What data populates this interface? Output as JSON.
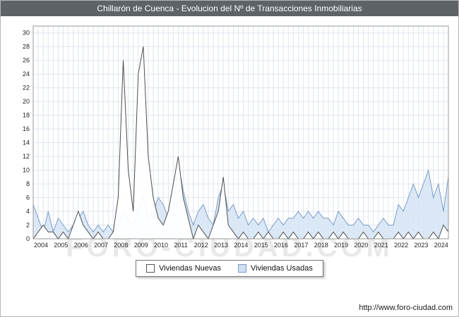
{
  "title": "Chillarón de Cuenca - Evolucion del Nº de Transacciones Inmobiliarias",
  "watermark": "FORO-CIUDAD.COM",
  "footer": {
    "url": "http://www.foro-ciudad.com"
  },
  "colors": {
    "header_bg": "#5e6367",
    "grid": "#dde6f0",
    "axis": "#999999",
    "tick_text": "#222222",
    "watermark": "#e9e9e9",
    "nuevas_line": "#4d4d4d",
    "nuevas_fill": "#ffffff",
    "usadas_line": "#7a9cc6",
    "usadas_fill": "#d6e4f5"
  },
  "legend": [
    {
      "label": "Viviendas Nuevas",
      "fill": "#ffffff",
      "stroke": "#555555"
    },
    {
      "label": "Viviendas Usadas",
      "fill": "#cfe0f2",
      "stroke": "#7a9cc6"
    }
  ],
  "chart_data": {
    "type": "area",
    "title": "Chillarón de Cuenca - Evolucion del Nº de Transacciones Inmobiliarias",
    "xlabel": "",
    "ylabel": "",
    "x_start_year": 2004,
    "points_per_year": 4,
    "x_tick_labels": [
      "2004",
      "2005",
      "2006",
      "2007",
      "2008",
      "2009",
      "2010",
      "2011",
      "2012",
      "2013",
      "2014",
      "2015",
      "2016",
      "2017",
      "2018",
      "2019",
      "2020",
      "2021",
      "2022",
      "2023",
      "2024"
    ],
    "y_ticks": [
      0,
      2,
      4,
      6,
      8,
      10,
      12,
      14,
      16,
      18,
      20,
      22,
      24,
      26,
      28,
      30
    ],
    "ylim": [
      0,
      31
    ],
    "grid": true,
    "legend_position": "bottom",
    "series": [
      {
        "name": "Viviendas Nuevas",
        "color": "#4d4d4d",
        "fill": "#ffffff",
        "fill_opacity": 0.92,
        "values": [
          0,
          1,
          2,
          1,
          1,
          0,
          1,
          0,
          2,
          4,
          2,
          1,
          0,
          1,
          0,
          0,
          1,
          6,
          26,
          10,
          4,
          24,
          28,
          12,
          6,
          3,
          2,
          4,
          8,
          12,
          6,
          3,
          0,
          2,
          1,
          0,
          2,
          4,
          9,
          2,
          1,
          0,
          1,
          0,
          0,
          1,
          0,
          1,
          0,
          0,
          1,
          0,
          1,
          0,
          0,
          1,
          0,
          1,
          0,
          0,
          1,
          0,
          1,
          0,
          0,
          0,
          1,
          0,
          0,
          1,
          0,
          0,
          0,
          1,
          0,
          1,
          0,
          1,
          0,
          0,
          1,
          0,
          2,
          1
        ]
      },
      {
        "name": "Viviendas Usadas",
        "color": "#7a9cc6",
        "fill": "#d6e4f5",
        "fill_opacity": 0.85,
        "values": [
          5,
          3,
          1,
          4,
          1,
          3,
          2,
          1,
          2,
          3,
          4,
          2,
          1,
          2,
          1,
          2,
          1,
          2,
          4,
          3,
          2,
          4,
          6,
          3,
          4,
          6,
          5,
          3,
          5,
          11,
          7,
          4,
          2,
          4,
          5,
          3,
          2,
          6,
          8,
          4,
          5,
          3,
          4,
          2,
          3,
          2,
          3,
          1,
          2,
          3,
          2,
          3,
          3,
          4,
          3,
          4,
          3,
          4,
          3,
          3,
          2,
          4,
          3,
          2,
          2,
          3,
          2,
          2,
          1,
          2,
          3,
          2,
          2,
          5,
          4,
          6,
          8,
          6,
          8,
          10,
          6,
          8,
          4,
          9
        ]
      }
    ]
  }
}
